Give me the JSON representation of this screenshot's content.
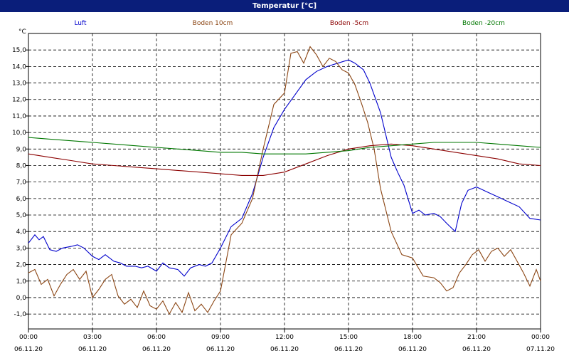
{
  "chart_data": {
    "type": "line",
    "title": "Temperatur [°C]",
    "ylabel": "°C",
    "ylim": [
      -1.9,
      16.0
    ],
    "xlim_hours": [
      0,
      24
    ],
    "grid": true,
    "legend_placement": "top",
    "y_ticks": [
      "-1,0",
      "0,0",
      "1,0",
      "2,0",
      "3,0",
      "4,0",
      "5,0",
      "6,0",
      "7,0",
      "8,0",
      "9,0",
      "10,0",
      "11,0",
      "12,0",
      "13,0",
      "14,0",
      "15,0"
    ],
    "x_ticks": [
      {
        "time": "00:00",
        "date": "06.11.20"
      },
      {
        "time": "03:00",
        "date": "06.11.20"
      },
      {
        "time": "06:00",
        "date": "06.11.20"
      },
      {
        "time": "09:00",
        "date": "06.11.20"
      },
      {
        "time": "12:00",
        "date": "06.11.20"
      },
      {
        "time": "15:00",
        "date": "06.11.20"
      },
      {
        "time": "18:00",
        "date": "06.11.20"
      },
      {
        "time": "21:00",
        "date": "06.11.20"
      },
      {
        "time": "00:00",
        "date": "07.11.20"
      }
    ],
    "series": [
      {
        "name": "Luft",
        "color": "#0000cc",
        "x": [
          0,
          0.3,
          0.5,
          0.7,
          1,
          1.3,
          1.6,
          2,
          2.3,
          2.6,
          3,
          3.3,
          3.6,
          4,
          4.3,
          4.6,
          5,
          5.3,
          5.6,
          6,
          6.3,
          6.6,
          7,
          7.3,
          7.6,
          8,
          8.3,
          8.6,
          9,
          9.5,
          10,
          10.5,
          11,
          11.5,
          12,
          12.5,
          13,
          13.5,
          14,
          14.5,
          15,
          15.3,
          15.7,
          16,
          16.5,
          17,
          17.3,
          17.6,
          18,
          18.3,
          18.6,
          19,
          19.3,
          19.6,
          20,
          20.3,
          20.6,
          21,
          21.5,
          22,
          22.5,
          23,
          23.5,
          24
        ],
        "y": [
          3.3,
          3.8,
          3.5,
          3.7,
          2.9,
          2.8,
          3.0,
          3.1,
          3.2,
          3.0,
          2.5,
          2.3,
          2.6,
          2.2,
          2.1,
          1.9,
          1.9,
          1.8,
          1.9,
          1.6,
          2.1,
          1.8,
          1.7,
          1.3,
          1.8,
          2.0,
          1.9,
          2.1,
          3.0,
          4.3,
          4.8,
          6.3,
          8.5,
          10.3,
          11.4,
          12.3,
          13.2,
          13.7,
          14.0,
          14.2,
          14.4,
          14.2,
          13.8,
          13.0,
          11.2,
          8.5,
          7.6,
          6.8,
          5.1,
          5.3,
          5.0,
          5.1,
          4.9,
          4.5,
          4.0,
          5.7,
          6.5,
          6.7,
          6.4,
          6.1,
          5.8,
          5.5,
          4.8,
          4.7
        ]
      },
      {
        "name": "Boden 10cm",
        "color": "#8b4513",
        "x": [
          0,
          0.3,
          0.6,
          0.9,
          1.2,
          1.5,
          1.8,
          2.1,
          2.4,
          2.7,
          3,
          3.3,
          3.6,
          3.9,
          4.2,
          4.5,
          4.8,
          5.1,
          5.4,
          5.7,
          6,
          6.3,
          6.6,
          6.9,
          7.2,
          7.5,
          7.8,
          8.1,
          8.4,
          8.7,
          9,
          9.5,
          10,
          10.5,
          11,
          11.5,
          12,
          12.3,
          12.6,
          12.9,
          13.2,
          13.5,
          13.8,
          14.1,
          14.4,
          14.7,
          15,
          15.3,
          15.6,
          15.9,
          16.2,
          16.5,
          17,
          17.5,
          18,
          18.5,
          19,
          19.3,
          19.6,
          19.9,
          20.2,
          20.5,
          20.8,
          21.1,
          21.4,
          21.7,
          22,
          22.3,
          22.6,
          22.9,
          23.2,
          23.5,
          23.8,
          24
        ],
        "y": [
          1.5,
          1.7,
          0.8,
          1.1,
          0.1,
          0.8,
          1.4,
          1.7,
          1.1,
          1.6,
          0.0,
          0.5,
          1.1,
          1.4,
          0.1,
          -0.4,
          -0.1,
          -0.6,
          0.4,
          -0.5,
          -0.7,
          -0.2,
          -1.0,
          -0.3,
          -0.9,
          0.3,
          -0.8,
          -0.4,
          -0.9,
          -0.2,
          0.4,
          3.8,
          4.5,
          6.0,
          9.0,
          11.7,
          12.4,
          14.8,
          14.9,
          14.2,
          15.2,
          14.7,
          14.0,
          14.5,
          14.3,
          13.8,
          13.6,
          12.9,
          11.8,
          10.6,
          9.0,
          6.6,
          4.0,
          2.6,
          2.4,
          1.3,
          1.2,
          0.9,
          0.4,
          0.6,
          1.5,
          2.0,
          2.6,
          2.9,
          2.2,
          2.8,
          3.0,
          2.5,
          2.9,
          2.2,
          1.5,
          0.7,
          1.7,
          1.0
        ]
      },
      {
        "name": "Boden -5cm",
        "color": "#8b0000",
        "x": [
          0,
          1,
          2,
          3,
          4,
          5,
          6,
          7,
          8,
          9,
          10,
          11,
          12,
          13,
          14,
          15,
          16,
          17,
          18,
          19,
          20,
          21,
          22,
          23,
          24
        ],
        "y": [
          8.7,
          8.5,
          8.3,
          8.1,
          8.0,
          7.9,
          7.8,
          7.7,
          7.6,
          7.5,
          7.4,
          7.4,
          7.6,
          8.1,
          8.6,
          9.0,
          9.2,
          9.3,
          9.2,
          9.0,
          8.8,
          8.6,
          8.4,
          8.1,
          8.0
        ]
      },
      {
        "name": "Boden -20cm",
        "color": "#007700",
        "x": [
          0,
          1,
          2,
          3,
          4,
          5,
          6,
          7,
          8,
          9,
          10,
          11,
          12,
          13,
          14,
          15,
          16,
          17,
          18,
          19,
          20,
          21,
          22,
          23,
          24
        ],
        "y": [
          9.7,
          9.6,
          9.5,
          9.4,
          9.3,
          9.2,
          9.1,
          9.0,
          8.9,
          8.8,
          8.8,
          8.7,
          8.7,
          8.7,
          8.8,
          8.9,
          9.1,
          9.2,
          9.3,
          9.4,
          9.4,
          9.4,
          9.3,
          9.2,
          9.1
        ]
      }
    ]
  }
}
